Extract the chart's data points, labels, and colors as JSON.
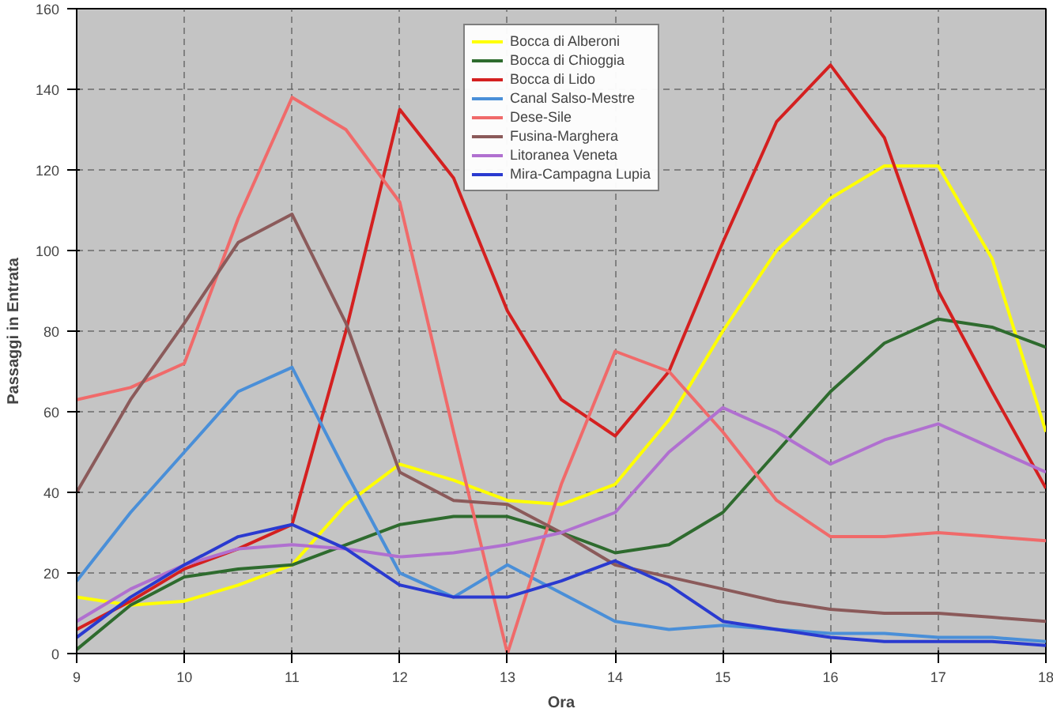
{
  "chart_data": {
    "type": "line",
    "xlabel": "Ora",
    "ylabel": "Passaggi in Entrata",
    "x": [
      9,
      9.5,
      10,
      10.5,
      11,
      11.5,
      12,
      12.5,
      13,
      13.5,
      14,
      14.5,
      15,
      15.5,
      16,
      16.5,
      17,
      17.5,
      18
    ],
    "xlim": [
      9,
      18
    ],
    "xticks": [
      9,
      10,
      11,
      12,
      13,
      14,
      15,
      16,
      17,
      18
    ],
    "ylim": [
      0,
      160
    ],
    "yticks": [
      0,
      20,
      40,
      60,
      80,
      100,
      120,
      140,
      160
    ],
    "grid": true,
    "legend": "top",
    "marker": "none",
    "line_style": "solid",
    "series": [
      {
        "name": "Bocca di Alberoni",
        "color": "#ffff00",
        "values": [
          14,
          12,
          13,
          17,
          22,
          37,
          47,
          43,
          38,
          37,
          42,
          58,
          80,
          100,
          113,
          121,
          121,
          98,
          55
        ]
      },
      {
        "name": "Bocca di Chioggia",
        "color": "#2e6b2e",
        "values": [
          1,
          12,
          19,
          21,
          22,
          27,
          32,
          34,
          34,
          30,
          25,
          27,
          35,
          50,
          65,
          77,
          83,
          81,
          76
        ]
      },
      {
        "name": "Bocca di Lido",
        "color": "#d42020",
        "values": [
          6,
          13,
          21,
          26,
          32,
          80,
          135,
          118,
          85,
          63,
          54,
          70,
          102,
          132,
          146,
          128,
          90,
          65,
          41
        ]
      },
      {
        "name": "Canal Salso-Mestre",
        "color": "#4a8fd8",
        "values": [
          18,
          35,
          50,
          65,
          71,
          45,
          20,
          14,
          22,
          15,
          8,
          6,
          7,
          6,
          5,
          5,
          4,
          4,
          3
        ]
      },
      {
        "name": "Dese-Sile",
        "color": "#f06a6a",
        "values": [
          63,
          66,
          72,
          108,
          138,
          130,
          112,
          55,
          0,
          42,
          75,
          70,
          55,
          38,
          29,
          29,
          30,
          29,
          28
        ]
      },
      {
        "name": "Fusina-Marghera",
        "color": "#8b5a5a",
        "values": [
          40,
          63,
          82,
          102,
          109,
          82,
          45,
          38,
          37,
          30,
          22,
          19,
          16,
          13,
          11,
          10,
          10,
          9,
          8
        ]
      },
      {
        "name": "Litoranea Veneta",
        "color": "#b070d0",
        "values": [
          8,
          16,
          22,
          26,
          27,
          26,
          24,
          25,
          27,
          30,
          35,
          50,
          61,
          55,
          47,
          53,
          57,
          51,
          45
        ]
      },
      {
        "name": "Mira-Campagna Lupia",
        "color": "#2a3ad0",
        "values": [
          4,
          14,
          22,
          29,
          32,
          26,
          17,
          14,
          14,
          18,
          23,
          17,
          8,
          6,
          4,
          3,
          3,
          3,
          2
        ]
      }
    ]
  }
}
